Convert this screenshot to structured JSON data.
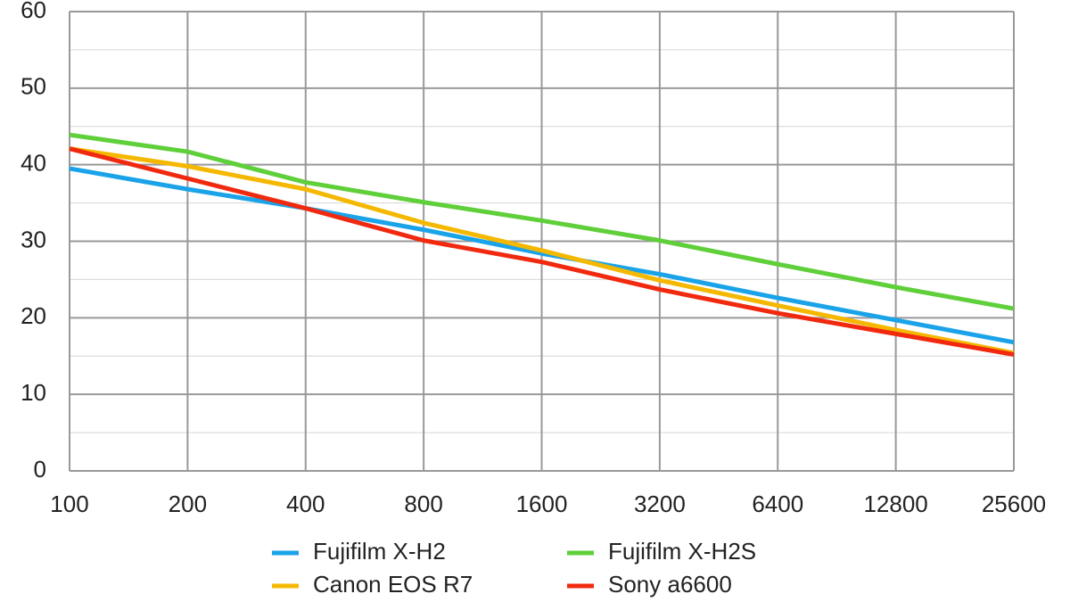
{
  "chart_data": {
    "type": "line",
    "categories": [
      "100",
      "200",
      "400",
      "800",
      "1600",
      "3200",
      "6400",
      "12800",
      "25600"
    ],
    "series": [
      {
        "name": "Fujifilm X-H2",
        "color": "#1aa3e8",
        "values": [
          39.5,
          36.8,
          34.3,
          31.5,
          28.4,
          25.7,
          22.6,
          19.7,
          16.8
        ]
      },
      {
        "name": "Fujifilm X-H2S",
        "color": "#5fcf3a",
        "values": [
          43.9,
          41.7,
          37.7,
          35.1,
          32.7,
          30.1,
          27.0,
          24.0,
          21.2
        ]
      },
      {
        "name": "Canon EOS R7",
        "color": "#f5b800",
        "values": [
          42.1,
          39.8,
          36.8,
          32.4,
          28.8,
          24.9,
          21.6,
          18.4,
          15.4
        ]
      },
      {
        "name": "Sony a6600",
        "color": "#f0290f",
        "values": [
          42.1,
          38.2,
          34.3,
          30.1,
          27.3,
          23.7,
          20.6,
          17.9,
          15.2
        ]
      }
    ],
    "ylim": [
      0,
      60
    ],
    "yticks": [
      0,
      10,
      20,
      30,
      40,
      50,
      60
    ],
    "minor_yticks": [
      5,
      15,
      25,
      35,
      45,
      55
    ],
    "grid": true,
    "legend": "bottom"
  }
}
